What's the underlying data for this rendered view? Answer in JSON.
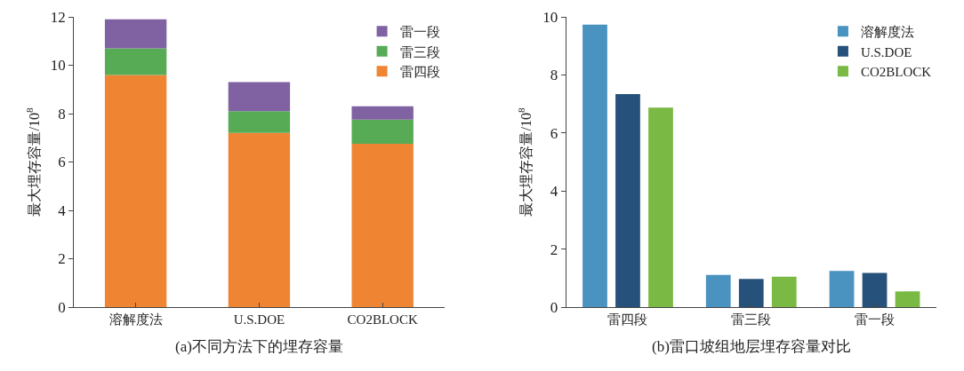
{
  "chart_data": [
    {
      "type": "bar",
      "title": "(a)不同方法下的埋存容量",
      "ylabel": "最大埋存容量/10$^{8}$",
      "categories": [
        "溶解度法",
        "U.S.DOE",
        "CO2BLOCK"
      ],
      "stacked": true,
      "ylim": [
        0,
        12
      ],
      "yticks": [
        0,
        2,
        4,
        6,
        8,
        10,
        12
      ],
      "legend": "top right",
      "series": [
        {
          "name": "雷四段",
          "color": "#ef8533",
          "values": [
            9.6,
            7.2,
            6.75
          ]
        },
        {
          "name": "雷三段",
          "color": "#57ab54",
          "values": [
            1.1,
            0.9,
            1.0
          ]
        },
        {
          "name": "雷一段",
          "color": "#8061a2",
          "values": [
            1.2,
            1.2,
            0.55
          ]
        }
      ]
    },
    {
      "type": "bar",
      "title": "(b)雷口坡组地层埋存容量对比",
      "ylabel": "最大埋存容量/10$^{8}$",
      "categories": [
        "雷四段",
        "雷三段",
        "雷一段"
      ],
      "ylim": [
        0,
        10
      ],
      "yticks": [
        0,
        2,
        4,
        6,
        8,
        10
      ],
      "legend": "top right",
      "series": [
        {
          "name": "溶解度法",
          "color": "#4a92bf",
          "values": [
            9.73,
            1.11,
            1.25
          ]
        },
        {
          "name": "U.S.DOE",
          "color": "#26517a",
          "values": [
            7.34,
            0.97,
            1.18
          ]
        },
        {
          "name": "CO2BLOCK",
          "color": "#7ab944",
          "values": [
            6.87,
            1.05,
            0.54
          ]
        }
      ]
    }
  ]
}
